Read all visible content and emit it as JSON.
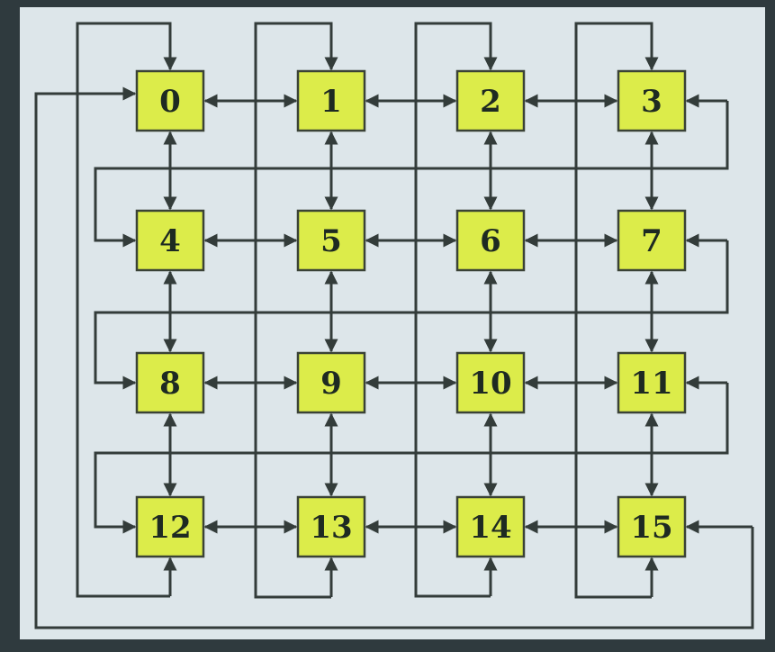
{
  "diagram": {
    "type": "mesh-with-wraparound",
    "rows": 4,
    "cols": 4,
    "colors": {
      "node_fill": "#dcec4a",
      "node_stroke": "#3a4236",
      "wire": "#333c3a",
      "panel": "#dde6ea",
      "frame": "#2f3a3e"
    },
    "nodes": [
      {
        "id": "0",
        "label": "0",
        "row": 0,
        "col": 0
      },
      {
        "id": "1",
        "label": "1",
        "row": 0,
        "col": 1
      },
      {
        "id": "2",
        "label": "2",
        "row": 0,
        "col": 2
      },
      {
        "id": "3",
        "label": "3",
        "row": 0,
        "col": 3
      },
      {
        "id": "4",
        "label": "4",
        "row": 1,
        "col": 0
      },
      {
        "id": "5",
        "label": "5",
        "row": 1,
        "col": 1
      },
      {
        "id": "6",
        "label": "6",
        "row": 1,
        "col": 2
      },
      {
        "id": "7",
        "label": "7",
        "row": 1,
        "col": 3
      },
      {
        "id": "8",
        "label": "8",
        "row": 2,
        "col": 0
      },
      {
        "id": "9",
        "label": "9",
        "row": 2,
        "col": 1
      },
      {
        "id": "10",
        "label": "10",
        "row": 2,
        "col": 2
      },
      {
        "id": "11",
        "label": "11",
        "row": 2,
        "col": 3
      },
      {
        "id": "12",
        "label": "12",
        "row": 3,
        "col": 0
      },
      {
        "id": "13",
        "label": "13",
        "row": 3,
        "col": 1
      },
      {
        "id": "14",
        "label": "14",
        "row": 3,
        "col": 2
      },
      {
        "id": "15",
        "label": "15",
        "row": 3,
        "col": 3
      }
    ],
    "links": {
      "horizontal_bidirectional": [
        [
          "0",
          "1"
        ],
        [
          "1",
          "2"
        ],
        [
          "2",
          "3"
        ],
        [
          "4",
          "5"
        ],
        [
          "5",
          "6"
        ],
        [
          "6",
          "7"
        ],
        [
          "8",
          "9"
        ],
        [
          "9",
          "10"
        ],
        [
          "10",
          "11"
        ],
        [
          "12",
          "13"
        ],
        [
          "13",
          "14"
        ],
        [
          "14",
          "15"
        ]
      ],
      "vertical_bidirectional": [
        [
          "0",
          "4"
        ],
        [
          "4",
          "8"
        ],
        [
          "8",
          "12"
        ],
        [
          "1",
          "5"
        ],
        [
          "5",
          "9"
        ],
        [
          "9",
          "13"
        ],
        [
          "2",
          "6"
        ],
        [
          "6",
          "10"
        ],
        [
          "10",
          "14"
        ],
        [
          "3",
          "7"
        ],
        [
          "7",
          "11"
        ],
        [
          "11",
          "15"
        ]
      ],
      "column_wraparound": [
        [
          "12",
          "0"
        ],
        [
          "13",
          "1"
        ],
        [
          "14",
          "2"
        ],
        [
          "15",
          "3"
        ]
      ],
      "row_wraparound": [
        [
          "3",
          "4"
        ],
        [
          "7",
          "8"
        ],
        [
          "11",
          "12"
        ],
        [
          "15",
          "0"
        ]
      ]
    }
  }
}
